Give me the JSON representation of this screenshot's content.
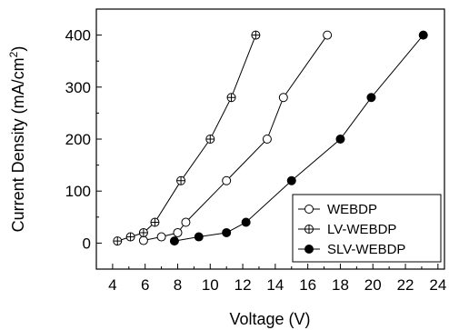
{
  "chart_data": {
    "type": "line",
    "title": "",
    "xlabel": "Voltage (V)",
    "ylabel": "Current Density (mA/cm",
    "ylabel_sup": "2",
    "ylabel_suffix": ")",
    "xlim": [
      3,
      24.4
    ],
    "ylim": [
      -50,
      450
    ],
    "x_ticks": [
      4,
      6,
      8,
      10,
      12,
      14,
      16,
      18,
      20,
      22,
      24
    ],
    "y_ticks": [
      0,
      100,
      200,
      300,
      400
    ],
    "legend_position": "bottom-right",
    "grid": false,
    "series": [
      {
        "name": "WEBDP",
        "marker": "open-circle",
        "color": "#000000",
        "x": [
          5.9,
          7.0,
          8.0,
          8.5,
          11.0,
          13.5,
          14.5,
          17.2
        ],
        "y": [
          5,
          12,
          20,
          40,
          120,
          200,
          280,
          400
        ]
      },
      {
        "name": "LV-WEBDP",
        "marker": "crossed-circle",
        "color": "#000000",
        "x": [
          4.3,
          5.1,
          5.9,
          6.6,
          8.2,
          10.0,
          11.3,
          12.8
        ],
        "y": [
          4,
          12,
          20,
          40,
          120,
          200,
          280,
          400
        ]
      },
      {
        "name": "SLV-WEBDP",
        "marker": "filled-circle",
        "color": "#000000",
        "x": [
          7.8,
          9.3,
          11.0,
          12.2,
          15.0,
          18.0,
          19.9,
          23.1
        ],
        "y": [
          4,
          12,
          20,
          40,
          120,
          200,
          280,
          400
        ]
      }
    ]
  }
}
